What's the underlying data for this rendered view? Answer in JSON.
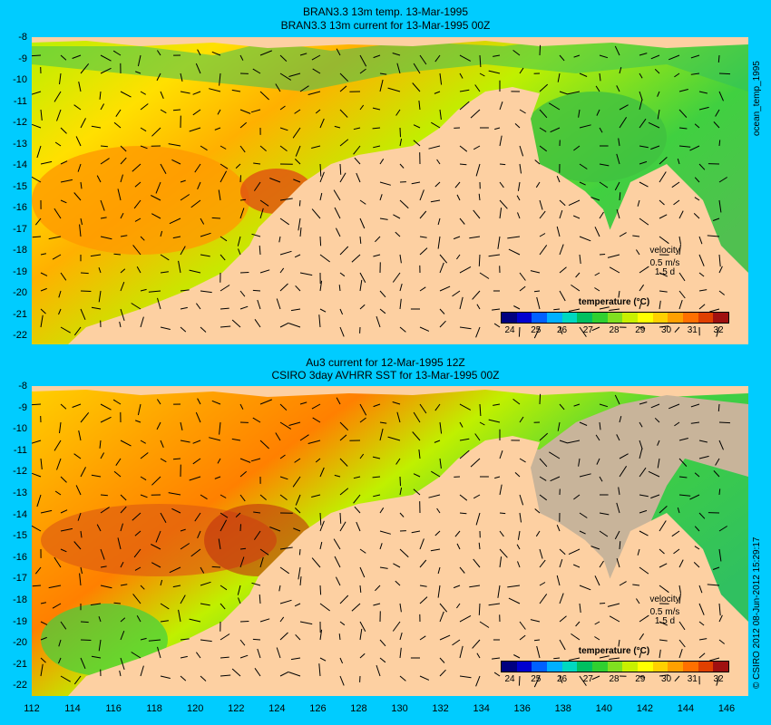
{
  "panel1": {
    "title_line1": "BRAN3.3 13m temp. 13-Mar-1995",
    "title_line2": "BRAN3.3 13m current for 13-Mar-1995 00Z",
    "side_label": "ocean_temp_1995",
    "velocity_label": "velocity",
    "velocity_scale": "0.5 m/s",
    "velocity_time": "1.5 d",
    "legend_title": "temperature (°C)"
  },
  "panel2": {
    "title_line1": "Au3 current for 12-Mar-1995 12Z",
    "title_line2": "CSIRO 3day AVHRR SST for 13-Mar-1995 00Z",
    "side_label": "© CSIRO 2012  08-Jun-2012 15:29:17",
    "velocity_label": "velocity",
    "velocity_scale": "0.5 m/s",
    "velocity_time": "1.5 d",
    "legend_title": "temperature (°C)"
  },
  "lat_labels": [
    "-8",
    "-9",
    "-10",
    "-11",
    "-12",
    "-13",
    "-14",
    "-15",
    "-16",
    "-17",
    "-18",
    "-19",
    "-20",
    "-21",
    "-22"
  ],
  "lon_labels": [
    "112",
    "114",
    "116",
    "118",
    "120",
    "122",
    "124",
    "126",
    "128",
    "130",
    "132",
    "134",
    "136",
    "138",
    "140",
    "142",
    "144",
    "146"
  ],
  "legend_ticks": [
    "24",
    "25",
    "26",
    "27",
    "28",
    "29",
    "30",
    "31",
    "32"
  ],
  "colors": {
    "background": "#00ccff",
    "land": "#fdd0a2",
    "no_data": "#c8b49a",
    "palette": [
      "#000080",
      "#0000d0",
      "#0060ff",
      "#00b0ff",
      "#00d8c0",
      "#00c060",
      "#30d030",
      "#80e020",
      "#c8f000",
      "#ffff00",
      "#ffd000",
      "#ffa000",
      "#ff7000",
      "#e04000",
      "#a01010"
    ]
  }
}
